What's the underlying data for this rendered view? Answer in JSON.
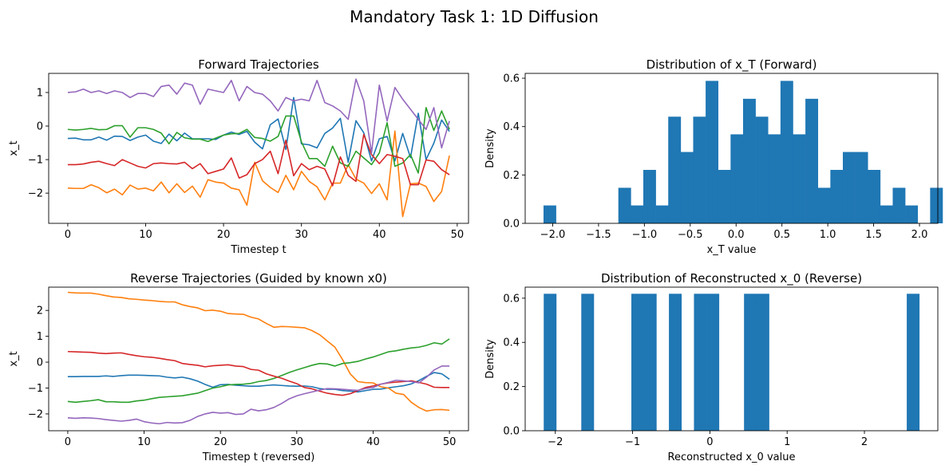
{
  "figure_title": "Mandatory Task 1: 1D Diffusion",
  "colors": [
    "#1f77b4",
    "#ff7f0e",
    "#2ca02c",
    "#d62728",
    "#9467bd"
  ],
  "chart_data": [
    {
      "type": "line",
      "title": "Forward Trajectories",
      "xlabel": "Timestep t",
      "ylabel": "x_t",
      "xlim": [
        -2.45,
        51.45
      ],
      "ylim": [
        -2.9,
        1.57
      ],
      "xticks": [
        0,
        10,
        20,
        30,
        40,
        50
      ],
      "yticks": [
        -2,
        -1,
        0,
        1
      ],
      "grid": false,
      "series": [
        {
          "values": [
            -0.37,
            -0.36,
            -0.41,
            -0.41,
            -0.33,
            -0.42,
            -0.3,
            -0.31,
            -0.43,
            -0.33,
            -0.27,
            -0.45,
            -0.52,
            -0.24,
            -0.44,
            -0.21,
            -0.38,
            -0.38,
            -0.38,
            -0.4,
            -0.27,
            -0.18,
            -0.25,
            -0.16,
            -0.48,
            -0.68,
            0.04,
            0.21,
            -0.7,
            0.85,
            -0.53,
            -0.56,
            -0.65,
            -0.22,
            -0.06,
            0.23,
            -1.08,
            0.16,
            -0.2,
            -1.04,
            -0.38,
            -0.31,
            -1.04,
            -0.22,
            -0.94,
            0.38,
            -1.0,
            -0.51,
            0.18,
            -0.16
          ]
        },
        {
          "values": [
            -1.85,
            -1.86,
            -1.86,
            -1.75,
            -1.84,
            -1.99,
            -1.88,
            -2.05,
            -1.76,
            -1.88,
            -1.85,
            -1.93,
            -1.67,
            -1.99,
            -1.72,
            -1.98,
            -1.79,
            -2.12,
            -1.6,
            -1.67,
            -1.7,
            -1.85,
            -1.9,
            -2.36,
            -1.08,
            -1.63,
            -1.83,
            -1.98,
            -1.47,
            -1.9,
            -1.35,
            -1.65,
            -1.81,
            -2.2,
            -1.7,
            -1.7,
            -1.15,
            -1.58,
            -1.7,
            -2.01,
            -1.72,
            -2.2,
            -0.15,
            -2.7,
            -1.72,
            -1.7,
            -1.8,
            -2.25,
            -1.95,
            -0.88
          ]
        },
        {
          "values": [
            -0.1,
            -0.12,
            -0.1,
            -0.07,
            -0.11,
            -0.1,
            0.01,
            0.01,
            -0.33,
            -0.05,
            -0.05,
            -0.1,
            -0.21,
            -0.53,
            -0.19,
            -0.35,
            -0.39,
            -0.39,
            -0.46,
            -0.36,
            -0.27,
            -0.23,
            -0.22,
            -0.1,
            -0.34,
            -0.37,
            -0.45,
            -0.31,
            0.3,
            0.3,
            -0.47,
            -0.97,
            -0.97,
            -1.2,
            -0.6,
            -1.1,
            -1.2,
            -0.75,
            -0.95,
            -1.15,
            -0.8,
            0.1,
            -1.2,
            -1.1,
            -0.85,
            -1.4,
            0.55,
            -0.13,
            0.45,
            -0.1
          ]
        },
        {
          "values": [
            -1.15,
            -1.15,
            -1.13,
            -1.08,
            -1.05,
            -1.12,
            -1.18,
            -1.0,
            -1.1,
            -1.2,
            -1.25,
            -1.12,
            -1.1,
            -1.12,
            -1.13,
            -1.08,
            -1.27,
            -1.12,
            -1.42,
            -1.35,
            -1.28,
            -0.95,
            -1.55,
            -1.45,
            -1.12,
            -1.0,
            -0.75,
            -1.42,
            -0.42,
            -1.48,
            -1.12,
            -1.3,
            -1.2,
            -1.28,
            -1.78,
            -0.92,
            -1.47,
            -1.65,
            -0.25,
            -0.85,
            -1.12,
            -0.85,
            -0.9,
            -0.97,
            -1.75,
            -1.75,
            -1.01,
            -1.05,
            -1.3,
            -1.45
          ]
        },
        {
          "values": [
            1.0,
            1.02,
            1.1,
            1.0,
            1.05,
            0.97,
            1.05,
            1.0,
            0.85,
            0.97,
            0.97,
            0.88,
            1.18,
            1.22,
            0.95,
            1.28,
            1.22,
            0.65,
            1.1,
            1.05,
            1.0,
            1.36,
            0.75,
            1.18,
            1.0,
            0.95,
            0.75,
            0.45,
            0.85,
            0.75,
            0.8,
            0.75,
            1.36,
            0.7,
            0.6,
            0.45,
            0.2,
            1.4,
            0.75,
            -0.8,
            1.22,
            0.15,
            1.15,
            0.8,
            0.5,
            0.2,
            -0.1,
            0.55,
            -0.65,
            0.15
          ]
        }
      ]
    },
    {
      "type": "bar",
      "title": "Distribution of x_T (Forward)",
      "xlabel": "x_T value",
      "ylabel": "Density",
      "xlim": [
        -2.3,
        2.2
      ],
      "ylim": [
        0,
        0.62
      ],
      "xticks": [
        -2.0,
        -1.5,
        -1.0,
        -0.5,
        0.0,
        0.5,
        1.0,
        1.5,
        2.0
      ],
      "yticks": [
        0.0,
        0.2,
        0.4,
        0.6
      ],
      "tick_decimals": 1,
      "bin_start": -2.1,
      "bin_width": 0.136,
      "values": [
        0.074,
        0,
        0,
        0,
        0,
        0,
        0.147,
        0.074,
        0.221,
        0.074,
        0.441,
        0.295,
        0.441,
        0.589,
        0.221,
        0.368,
        0.515,
        0.441,
        0.368,
        0.589,
        0.368,
        0.515,
        0.147,
        0.221,
        0.295,
        0.295,
        0.221,
        0.074,
        0.147,
        0.074,
        0,
        0.147
      ]
    },
    {
      "type": "line",
      "title": "Reverse Trajectories (Guided by known x0)",
      "xlabel": "Timestep t (reversed)",
      "ylabel": "x_t",
      "xlim": [
        -2.5,
        52.5
      ],
      "ylim": [
        -2.65,
        2.9
      ],
      "xticks": [
        0,
        10,
        20,
        30,
        40,
        50
      ],
      "yticks": [
        -2,
        -1,
        0,
        1,
        2
      ],
      "grid": false,
      "series": [
        {
          "values": [
            -0.56,
            -0.56,
            -0.55,
            -0.55,
            -0.55,
            -0.53,
            -0.55,
            -0.52,
            -0.5,
            -0.5,
            -0.51,
            -0.52,
            -0.53,
            -0.58,
            -0.61,
            -0.58,
            -0.64,
            -0.73,
            -0.86,
            -0.97,
            -0.87,
            -0.86,
            -0.89,
            -0.91,
            -0.93,
            -0.93,
            -0.9,
            -0.88,
            -0.9,
            -0.92,
            -0.93,
            -0.92,
            -0.95,
            -1.02,
            -1.05,
            -1.05,
            -1.1,
            -1.12,
            -1.15,
            -1.1,
            -1.05,
            -1.04,
            -0.99,
            -0.95,
            -0.91,
            -0.84,
            -0.71,
            -0.55,
            -0.4,
            -0.45,
            -0.66
          ]
        },
        {
          "values": [
            2.7,
            2.68,
            2.67,
            2.67,
            2.63,
            2.57,
            2.52,
            2.5,
            2.45,
            2.43,
            2.4,
            2.38,
            2.35,
            2.33,
            2.33,
            2.22,
            2.15,
            2.1,
            1.99,
            2.01,
            1.97,
            1.88,
            1.86,
            1.85,
            1.74,
            1.67,
            1.5,
            1.35,
            1.38,
            1.37,
            1.35,
            1.33,
            1.22,
            1.06,
            0.82,
            0.58,
            0.1,
            -0.45,
            -0.75,
            -0.79,
            -0.8,
            -0.95,
            -1.0,
            -1.2,
            -1.25,
            -1.55,
            -1.75,
            -1.89,
            -1.84,
            -1.83,
            -1.86
          ]
        },
        {
          "values": [
            -1.52,
            -1.55,
            -1.52,
            -1.49,
            -1.45,
            -1.53,
            -1.53,
            -1.55,
            -1.55,
            -1.5,
            -1.47,
            -1.41,
            -1.36,
            -1.34,
            -1.32,
            -1.3,
            -1.25,
            -1.2,
            -1.1,
            -1.0,
            -0.95,
            -0.88,
            -0.86,
            -0.85,
            -0.82,
            -0.75,
            -0.71,
            -0.63,
            -0.52,
            -0.4,
            -0.3,
            -0.21,
            -0.12,
            -0.05,
            -0.07,
            -0.15,
            -0.05,
            -0.02,
            0.03,
            0.12,
            0.2,
            0.3,
            0.4,
            0.44,
            0.5,
            0.55,
            0.58,
            0.65,
            0.75,
            0.7,
            0.9
          ]
        },
        {
          "values": [
            0.41,
            0.4,
            0.39,
            0.38,
            0.35,
            0.33,
            0.35,
            0.36,
            0.3,
            0.25,
            0.21,
            0.19,
            0.15,
            0.1,
            0.06,
            -0.05,
            -0.09,
            -0.12,
            -0.18,
            -0.14,
            -0.12,
            -0.1,
            -0.15,
            -0.17,
            -0.28,
            -0.31,
            -0.45,
            -0.54,
            -0.62,
            -0.73,
            -0.83,
            -0.98,
            -1.03,
            -1.12,
            -1.2,
            -1.25,
            -1.28,
            -1.22,
            -1.1,
            -0.98,
            -0.92,
            -0.85,
            -0.8,
            -0.77,
            -0.75,
            -0.72,
            -0.78,
            -0.85,
            -0.97,
            -0.98,
            -0.98
          ]
        },
        {
          "values": [
            -2.15,
            -2.17,
            -2.15,
            -2.16,
            -2.18,
            -2.22,
            -2.25,
            -2.28,
            -2.25,
            -2.2,
            -2.3,
            -2.35,
            -2.38,
            -2.33,
            -2.35,
            -2.34,
            -2.25,
            -2.1,
            -2.0,
            -1.94,
            -1.97,
            -1.95,
            -2.02,
            -2.0,
            -1.82,
            -1.88,
            -1.84,
            -1.75,
            -1.6,
            -1.42,
            -1.3,
            -1.22,
            -1.15,
            -1.08,
            -1.02,
            -1.03,
            -1.05,
            -1.07,
            -1.09,
            -1.02,
            -0.98,
            -0.85,
            -0.78,
            -0.7,
            -0.72,
            -0.75,
            -0.8,
            -0.58,
            -0.3,
            -0.15,
            -0.15
          ]
        }
      ]
    },
    {
      "type": "bar",
      "title": "Distribution of Reconstructed x_0 (Reverse)",
      "xlabel": "Reconstructed x_0 value",
      "ylabel": "Density",
      "xlim": [
        -2.39,
        2.95
      ],
      "ylim": [
        0,
        0.65
      ],
      "xticks": [
        -2,
        -1,
        0,
        1,
        2
      ],
      "yticks": [
        0.0,
        0.2,
        0.4,
        0.6
      ],
      "tick_decimals": 1,
      "bin_start": -2.15,
      "bin_width": 0.162,
      "values": [
        0.62,
        0,
        0,
        0.62,
        0,
        0,
        0,
        0.62,
        0.62,
        0,
        0.62,
        0,
        0.62,
        0.62,
        0,
        0,
        0.62,
        0.62,
        0,
        0,
        0,
        0,
        0,
        0,
        0,
        0,
        0,
        0,
        0,
        0.62
      ]
    }
  ]
}
